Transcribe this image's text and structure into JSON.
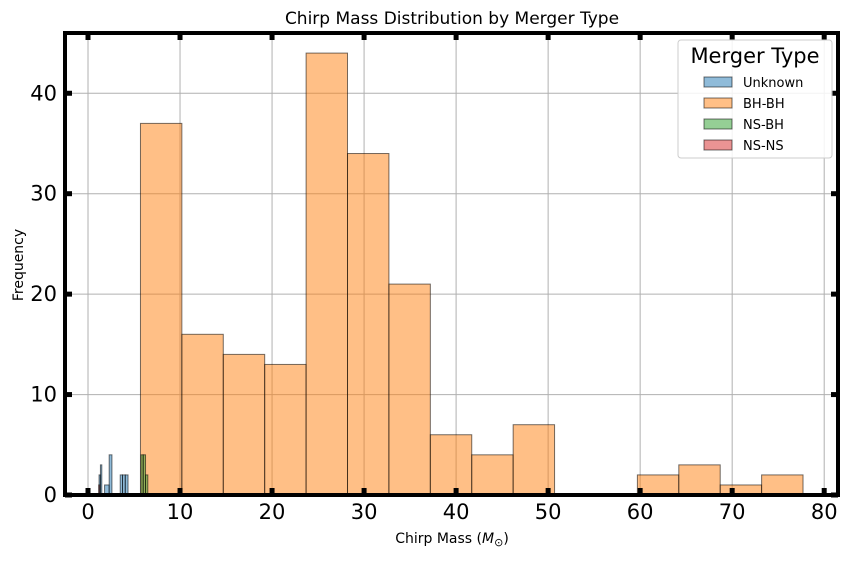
{
  "chart_data": {
    "type": "bar",
    "subtype": "histogram",
    "title": "Chirp Mass Distribution by Merger Type",
    "xlabel": "Chirp Mass (M⊙)",
    "ylabel": "Frequency",
    "xlim": [
      -2.5,
      81.5
    ],
    "ylim": [
      0,
      46
    ],
    "xticks": [
      0,
      10,
      20,
      30,
      40,
      50,
      60,
      70,
      80
    ],
    "yticks": [
      0,
      10,
      20,
      30,
      40
    ],
    "grid": true,
    "legend": {
      "title": "Merger Type",
      "position": "top-right"
    },
    "series": [
      {
        "name": "Unknown",
        "color": "#1f77b4",
        "bins": [
          {
            "x0": 1.2,
            "x1": 1.35,
            "value": 2
          },
          {
            "x0": 1.35,
            "x1": 1.5,
            "value": 3
          },
          {
            "x0": 1.8,
            "x1": 2.3,
            "value": 1
          },
          {
            "x0": 2.3,
            "x1": 2.6,
            "value": 4
          },
          {
            "x0": 3.5,
            "x1": 3.75,
            "value": 2
          },
          {
            "x0": 3.75,
            "x1": 4.05,
            "value": 2
          },
          {
            "x0": 4.05,
            "x1": 4.35,
            "value": 2
          }
        ]
      },
      {
        "name": "BH-BH",
        "color": "#ff7f0e",
        "bins": [
          {
            "x0": 5.7,
            "x1": 10.2,
            "value": 37
          },
          {
            "x0": 10.2,
            "x1": 14.7,
            "value": 16
          },
          {
            "x0": 14.7,
            "x1": 19.2,
            "value": 14
          },
          {
            "x0": 19.2,
            "x1": 23.7,
            "value": 13
          },
          {
            "x0": 23.7,
            "x1": 28.2,
            "value": 44
          },
          {
            "x0": 28.2,
            "x1": 32.7,
            "value": 34
          },
          {
            "x0": 32.7,
            "x1": 37.2,
            "value": 21
          },
          {
            "x0": 37.2,
            "x1": 41.7,
            "value": 6
          },
          {
            "x0": 41.7,
            "x1": 46.2,
            "value": 4
          },
          {
            "x0": 46.2,
            "x1": 50.7,
            "value": 7
          },
          {
            "x0": 59.7,
            "x1": 64.2,
            "value": 2
          },
          {
            "x0": 64.2,
            "x1": 68.7,
            "value": 3
          },
          {
            "x0": 68.7,
            "x1": 73.2,
            "value": 1
          },
          {
            "x0": 73.2,
            "x1": 77.7,
            "value": 2
          }
        ]
      },
      {
        "name": "NS-BH",
        "color": "#2ca02c",
        "bins": [
          {
            "x0": 5.75,
            "x1": 6.0,
            "value": 4
          },
          {
            "x0": 6.0,
            "x1": 6.25,
            "value": 4
          },
          {
            "x0": 6.25,
            "x1": 6.5,
            "value": 2
          }
        ]
      },
      {
        "name": "NS-NS",
        "color": "#d62728",
        "bins": [
          {
            "x0": 1.16,
            "x1": 1.2,
            "value": 1
          }
        ]
      }
    ]
  }
}
